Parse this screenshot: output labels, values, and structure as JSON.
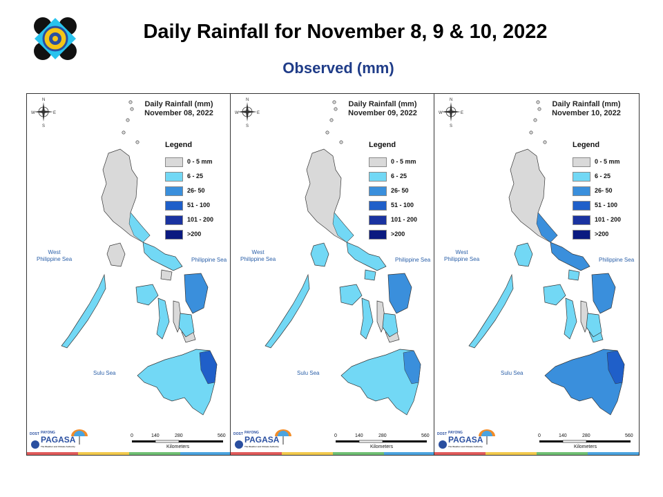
{
  "header": {
    "title": "Daily Rainfall for November 8, 9 & 10, 2022",
    "subtitle": "Observed (mm)"
  },
  "legend": {
    "title": "Legend",
    "items": [
      {
        "label": "0 - 5 mm",
        "color": "#d9d9d9"
      },
      {
        "label": "6 - 25",
        "color": "#72d8f5"
      },
      {
        "label": "26- 50",
        "color": "#3a8fdc"
      },
      {
        "label": "51 - 100",
        "color": "#1f5fc9"
      },
      {
        "label": "101 - 200",
        "color": "#1a33a0"
      },
      {
        "label": ">200",
        "color": "#0a1a80"
      }
    ]
  },
  "seas": {
    "west": "West\nPhilippine Sea",
    "east": "Philippine Sea",
    "sulu": "Sulu Sea"
  },
  "compass": {
    "n": "N",
    "s": "S",
    "e": "E",
    "w": "W"
  },
  "scale": {
    "ticks": [
      "0",
      "140",
      "280",
      "560"
    ],
    "unit": "Kilometers"
  },
  "branding": {
    "dost": "DOST",
    "payong": "PAYONG",
    "pagasa": "PAGASA",
    "tagline": "The Weather and Climate Authority"
  },
  "panels": [
    {
      "title_line1": "Daily Rainfall (mm)",
      "title_line2": "November 08, 2022"
    },
    {
      "title_line1": "Daily Rainfall (mm)",
      "title_line2": "November 09, 2022"
    },
    {
      "title_line1": "Daily Rainfall (mm)",
      "title_line2": "November 10, 2022"
    }
  ],
  "bottom_bar_colors": [
    "#e05a5a",
    "#f2c94c",
    "#6fbf73",
    "#4aa3df"
  ]
}
